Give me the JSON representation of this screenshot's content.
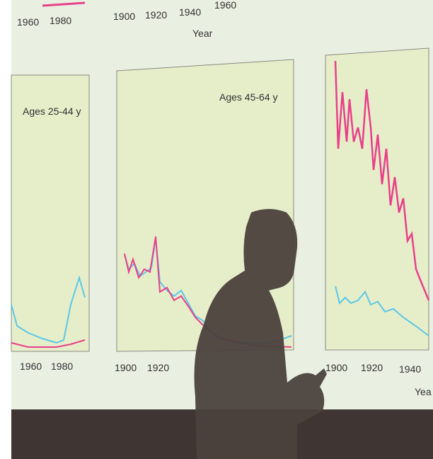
{
  "top_axis": {
    "left_ticks": [
      "1960",
      "1980"
    ],
    "mid_ticks": [
      "1900",
      "1920",
      "1940",
      "1960"
    ],
    "label": "Year"
  },
  "panels": [
    {
      "label": "Ages 25-44 y",
      "ticks": [
        "1960",
        "1980"
      ]
    },
    {
      "label": "Ages 45-64 y",
      "ticks": [
        "1900",
        "1920"
      ]
    },
    {
      "ticks": [
        "1900",
        "1920",
        "1940"
      ],
      "label": "Yea"
    }
  ]
}
